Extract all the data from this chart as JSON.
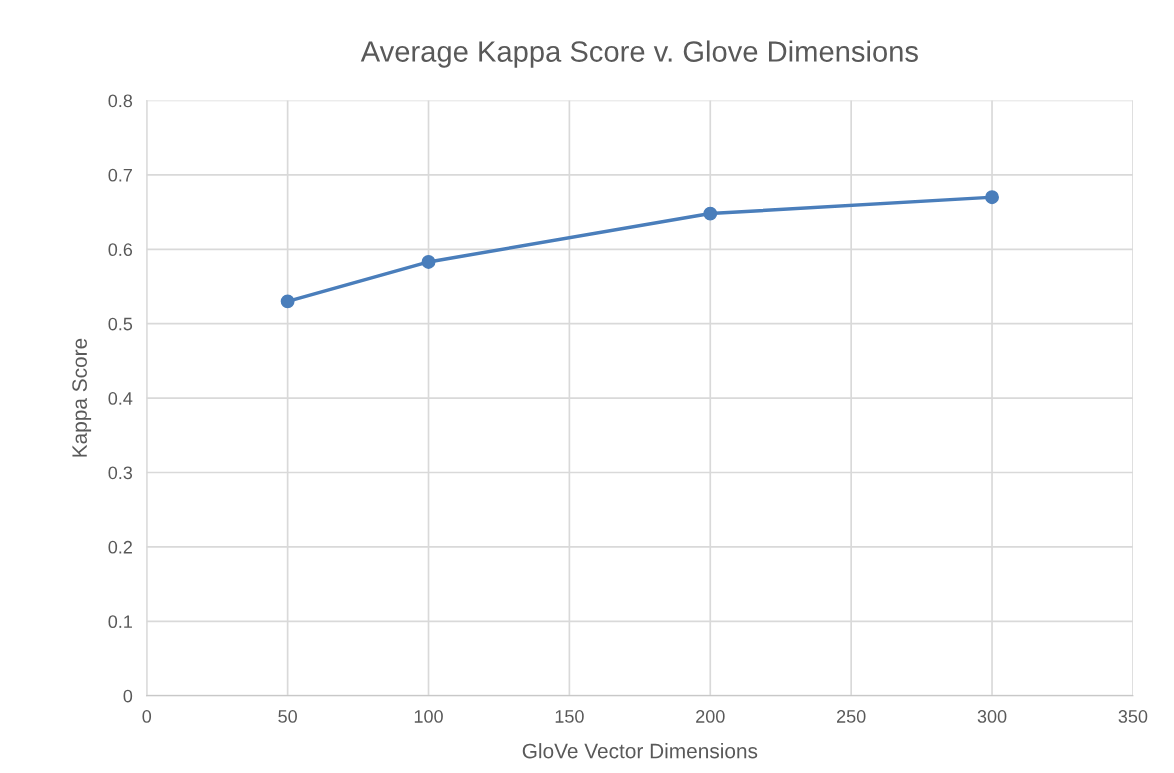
{
  "chart_data": {
    "type": "line",
    "title": "Average Kappa Score v. Glove Dimensions",
    "xlabel": "GloVe Vector Dimensions",
    "ylabel": "Kappa Score",
    "x": [
      50,
      100,
      200,
      300
    ],
    "series": [
      {
        "color": "#4a7ebb",
        "values": [
          0.53,
          0.583,
          0.648,
          0.67
        ]
      }
    ],
    "xlim": [
      0,
      350
    ],
    "xticks": [
      0,
      50,
      100,
      150,
      200,
      250,
      300,
      350
    ],
    "ylim": [
      0,
      0.8
    ],
    "yticks": [
      0,
      0.1,
      0.2,
      0.3,
      0.4,
      0.5,
      0.6,
      0.7,
      0.8
    ],
    "grid": true,
    "marker": "circle",
    "line_style": "solid"
  }
}
